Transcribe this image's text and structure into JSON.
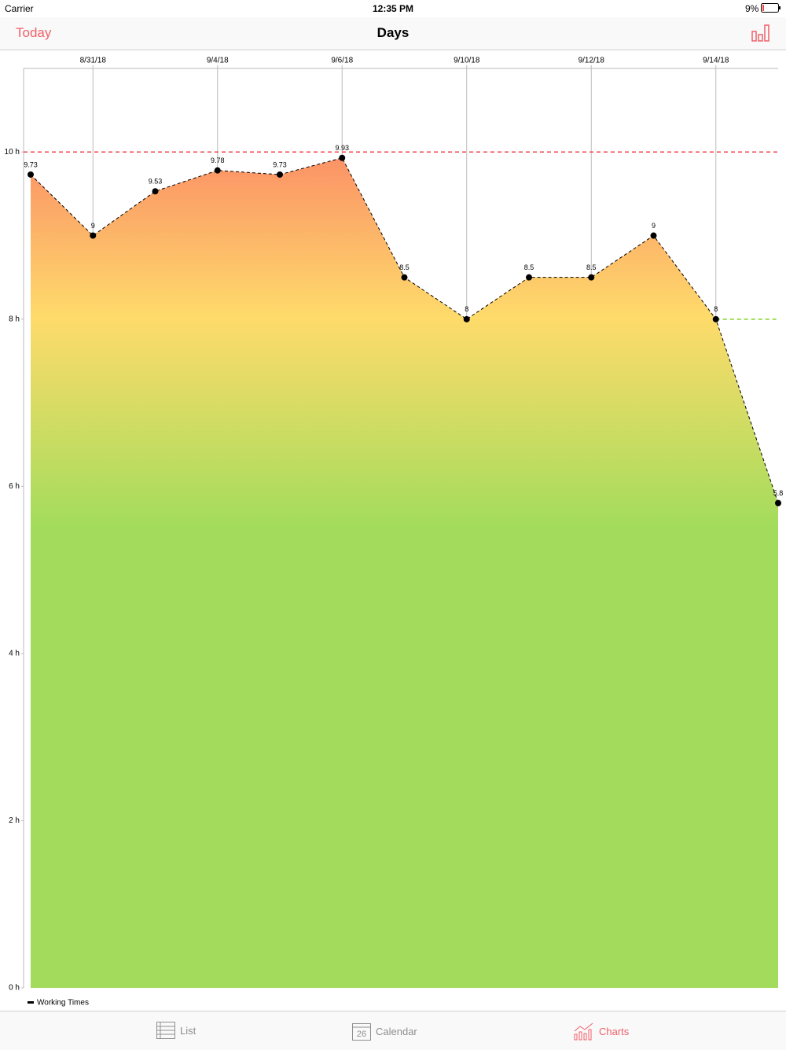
{
  "status_bar": {
    "carrier": "Carrier",
    "time": "12:35 PM",
    "battery": "9%"
  },
  "nav_bar": {
    "left_button": "Today",
    "title": "Days"
  },
  "chart_data": {
    "type": "area",
    "categories": [
      null,
      "8/31/18",
      null,
      "9/4/18",
      null,
      "9/6/18",
      null,
      "9/10/18",
      null,
      "9/12/18",
      null,
      "9/14/18",
      null
    ],
    "series": [
      {
        "name": "Working Times",
        "color": "#000000",
        "values": [
          9.73,
          9,
          9.53,
          9.78,
          9.73,
          9.93,
          8.5,
          8,
          8.5,
          8.5,
          9,
          8,
          5.8
        ]
      }
    ],
    "ylim": [
      0,
      11
    ],
    "yticks": [
      {
        "value": 0,
        "label": "0 h"
      },
      {
        "value": 2,
        "label": "2 h"
      },
      {
        "value": 4,
        "label": "4 h"
      },
      {
        "value": 6,
        "label": "6 h"
      },
      {
        "value": 8,
        "label": "8 h"
      },
      {
        "value": 10,
        "label": "10 h"
      }
    ],
    "limit_lines": [
      {
        "value": 10,
        "color": "#f0444c",
        "start_category": 0
      },
      {
        "value": 8,
        "color": "#7ed321",
        "start_category": 11
      }
    ],
    "grid": true
  },
  "tab_bar": {
    "tabs": [
      {
        "label": "List"
      },
      {
        "label": "Calendar",
        "icon_text": "26"
      },
      {
        "label": "Charts"
      }
    ]
  }
}
